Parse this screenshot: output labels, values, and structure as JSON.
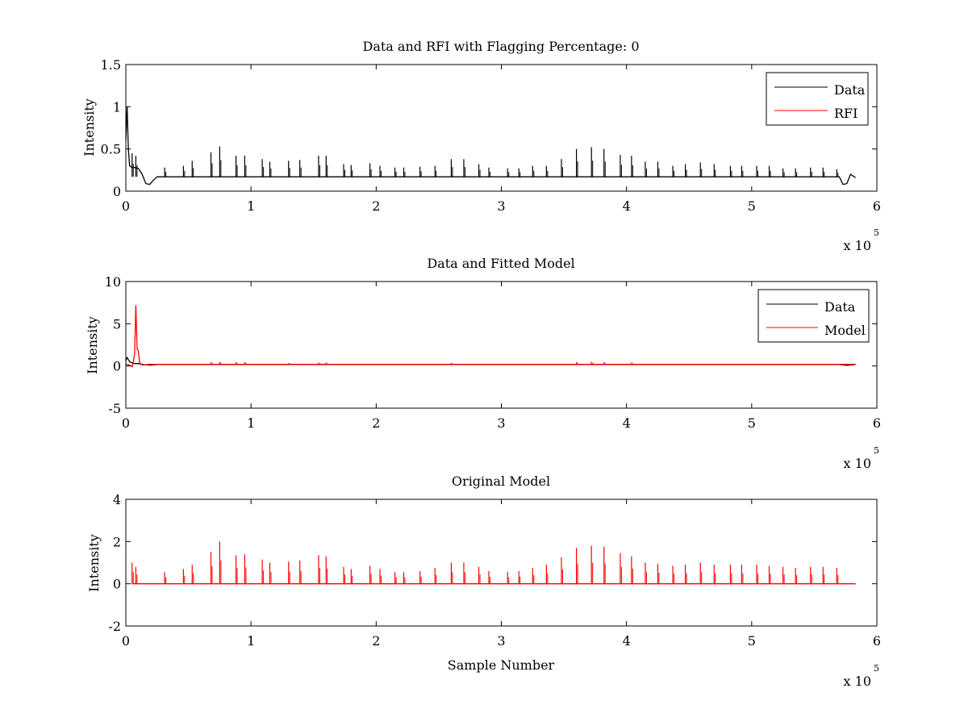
{
  "figure": {
    "background": "#ffffff"
  },
  "chart_data": [
    {
      "type": "line",
      "title": "Data and RFI with Flagging Percentage: 0",
      "xlabel": "",
      "ylabel": "Intensity",
      "xlim": [
        0,
        6
      ],
      "ylim": [
        0,
        1.5
      ],
      "x_ticks": [
        "0",
        "1",
        "2",
        "3",
        "4",
        "5",
        "6"
      ],
      "y_ticks": [
        "0",
        "0.5",
        "1",
        "1.5"
      ],
      "x_scale_label": {
        "prefix": "x 10",
        "exponent": "5"
      },
      "legend": {
        "position": "top-right",
        "entries": [
          {
            "name": "Data",
            "color": "#000000"
          },
          {
            "name": "RFI",
            "color": "#ff0000"
          }
        ]
      },
      "series": [
        {
          "name": "Data",
          "color": "#000000",
          "baseline": 0.17,
          "x": [
            0,
            0.01,
            0.02,
            0.03,
            0.05,
            0.07,
            0.1,
            0.13,
            0.16,
            0.19,
            0.22,
            0.25,
            5.7,
            5.73,
            5.76,
            5.79,
            5.83
          ],
          "y": [
            0.6,
            1.0,
            0.5,
            0.3,
            0.28,
            0.28,
            0.27,
            0.2,
            0.09,
            0.08,
            0.13,
            0.17,
            0.17,
            0.08,
            0.09,
            0.2,
            0.16
          ],
          "peaks": [
            {
              "x": 0.05,
              "y": 0.45
            },
            {
              "x": 0.08,
              "y": 0.42
            },
            {
              "x": 0.31,
              "y": 0.28
            },
            {
              "x": 0.46,
              "y": 0.3
            },
            {
              "x": 0.53,
              "y": 0.36
            },
            {
              "x": 0.68,
              "y": 0.46
            },
            {
              "x": 0.75,
              "y": 0.53
            },
            {
              "x": 0.88,
              "y": 0.42
            },
            {
              "x": 0.95,
              "y": 0.42
            },
            {
              "x": 1.09,
              "y": 0.38
            },
            {
              "x": 1.15,
              "y": 0.35
            },
            {
              "x": 1.3,
              "y": 0.36
            },
            {
              "x": 1.39,
              "y": 0.37
            },
            {
              "x": 1.54,
              "y": 0.42
            },
            {
              "x": 1.6,
              "y": 0.42
            },
            {
              "x": 1.74,
              "y": 0.32
            },
            {
              "x": 1.8,
              "y": 0.31
            },
            {
              "x": 1.95,
              "y": 0.33
            },
            {
              "x": 2.03,
              "y": 0.3
            },
            {
              "x": 2.15,
              "y": 0.28
            },
            {
              "x": 2.22,
              "y": 0.28
            },
            {
              "x": 2.35,
              "y": 0.29
            },
            {
              "x": 2.47,
              "y": 0.3
            },
            {
              "x": 2.6,
              "y": 0.38
            },
            {
              "x": 2.7,
              "y": 0.38
            },
            {
              "x": 2.82,
              "y": 0.32
            },
            {
              "x": 2.9,
              "y": 0.28
            },
            {
              "x": 3.05,
              "y": 0.27
            },
            {
              "x": 3.14,
              "y": 0.27
            },
            {
              "x": 3.25,
              "y": 0.3
            },
            {
              "x": 3.36,
              "y": 0.3
            },
            {
              "x": 3.48,
              "y": 0.38
            },
            {
              "x": 3.6,
              "y": 0.5
            },
            {
              "x": 3.72,
              "y": 0.52
            },
            {
              "x": 3.82,
              "y": 0.5
            },
            {
              "x": 3.95,
              "y": 0.43
            },
            {
              "x": 4.04,
              "y": 0.42
            },
            {
              "x": 4.15,
              "y": 0.35
            },
            {
              "x": 4.25,
              "y": 0.35
            },
            {
              "x": 4.37,
              "y": 0.3
            },
            {
              "x": 4.47,
              "y": 0.32
            },
            {
              "x": 4.59,
              "y": 0.34
            },
            {
              "x": 4.7,
              "y": 0.32
            },
            {
              "x": 4.83,
              "y": 0.3
            },
            {
              "x": 4.92,
              "y": 0.3
            },
            {
              "x": 5.04,
              "y": 0.3
            },
            {
              "x": 5.14,
              "y": 0.3
            },
            {
              "x": 5.25,
              "y": 0.27
            },
            {
              "x": 5.35,
              "y": 0.27
            },
            {
              "x": 5.47,
              "y": 0.28
            },
            {
              "x": 5.57,
              "y": 0.28
            },
            {
              "x": 5.68,
              "y": 0.26
            }
          ]
        },
        {
          "name": "RFI",
          "color": "#ff0000",
          "x": [],
          "y": []
        }
      ]
    },
    {
      "type": "line",
      "title": "Data and Fitted Model",
      "xlabel": "",
      "ylabel": "Intensity",
      "xlim": [
        0,
        6
      ],
      "ylim": [
        -5,
        10
      ],
      "x_ticks": [
        "0",
        "1",
        "2",
        "3",
        "4",
        "5",
        "6"
      ],
      "y_ticks": [
        "-5",
        "0",
        "5",
        "10"
      ],
      "x_scale_label": {
        "prefix": "x 10",
        "exponent": "5"
      },
      "legend": {
        "position": "top-right",
        "entries": [
          {
            "name": "Data",
            "color": "#000000"
          },
          {
            "name": "Model",
            "color": "#ff0000"
          }
        ]
      },
      "series": [
        {
          "name": "Data",
          "color": "#000000",
          "baseline": 0.17,
          "x": [
            0,
            0.01,
            0.03,
            0.06,
            0.1,
            0.15,
            0.2,
            0.25,
            5.7,
            5.76,
            5.83
          ],
          "y": [
            0.6,
            1.0,
            0.5,
            0.3,
            0.27,
            0.15,
            0.1,
            0.17,
            0.17,
            0.08,
            0.17
          ],
          "peaks": []
        },
        {
          "name": "Model",
          "color": "#ff0000",
          "baseline": 0.2,
          "x": [
            0,
            0.03,
            0.05,
            0.06,
            0.07,
            0.08,
            0.09,
            0.1,
            0.11,
            0.12,
            0.14,
            0.18,
            0.25,
            5.83
          ],
          "y": [
            0.2,
            0.1,
            -0.1,
            0.5,
            1.5,
            7.2,
            2.0,
            1.8,
            0.4,
            0.2,
            0.1,
            0.2,
            0.2,
            0.2
          ],
          "peaks": [
            {
              "x": 0.68,
              "y": 0.45
            },
            {
              "x": 0.75,
              "y": 0.5
            },
            {
              "x": 0.88,
              "y": 0.45
            },
            {
              "x": 0.95,
              "y": 0.45
            },
            {
              "x": 1.3,
              "y": 0.35
            },
            {
              "x": 1.54,
              "y": 0.4
            },
            {
              "x": 1.6,
              "y": 0.4
            },
            {
              "x": 2.6,
              "y": 0.35
            },
            {
              "x": 3.6,
              "y": 0.45
            },
            {
              "x": 3.72,
              "y": 0.5
            },
            {
              "x": 3.82,
              "y": 0.45
            },
            {
              "x": 4.04,
              "y": 0.4
            }
          ]
        }
      ]
    },
    {
      "type": "line",
      "title": "Original Model",
      "xlabel": "Sample Number",
      "ylabel": "Intensity",
      "xlim": [
        0,
        6
      ],
      "ylim": [
        -2,
        4
      ],
      "x_ticks": [
        "0",
        "1",
        "2",
        "3",
        "4",
        "5",
        "6"
      ],
      "y_ticks": [
        "-2",
        "0",
        "2",
        "4"
      ],
      "x_scale_label": {
        "prefix": "x 10",
        "exponent": "5"
      },
      "series": [
        {
          "name": "",
          "color": "#ff0000",
          "baseline": 0,
          "x": [
            0.05,
            5.83
          ],
          "y": [
            0,
            0
          ],
          "peaks": [
            {
              "x": 0.05,
              "y": 1.0
            },
            {
              "x": 0.08,
              "y": 0.8
            },
            {
              "x": 0.31,
              "y": 0.55
            },
            {
              "x": 0.46,
              "y": 0.7
            },
            {
              "x": 0.53,
              "y": 0.9
            },
            {
              "x": 0.68,
              "y": 1.5
            },
            {
              "x": 0.75,
              "y": 2.0
            },
            {
              "x": 0.88,
              "y": 1.35
            },
            {
              "x": 0.95,
              "y": 1.4
            },
            {
              "x": 1.09,
              "y": 1.15
            },
            {
              "x": 1.15,
              "y": 1.0
            },
            {
              "x": 1.3,
              "y": 1.05
            },
            {
              "x": 1.39,
              "y": 1.1
            },
            {
              "x": 1.54,
              "y": 1.35
            },
            {
              "x": 1.6,
              "y": 1.3
            },
            {
              "x": 1.74,
              "y": 0.8
            },
            {
              "x": 1.8,
              "y": 0.7
            },
            {
              "x": 1.95,
              "y": 0.85
            },
            {
              "x": 2.03,
              "y": 0.7
            },
            {
              "x": 2.15,
              "y": 0.55
            },
            {
              "x": 2.22,
              "y": 0.55
            },
            {
              "x": 2.35,
              "y": 0.6
            },
            {
              "x": 2.47,
              "y": 0.75
            },
            {
              "x": 2.6,
              "y": 1.0
            },
            {
              "x": 2.7,
              "y": 1.0
            },
            {
              "x": 2.82,
              "y": 0.8
            },
            {
              "x": 2.9,
              "y": 0.6
            },
            {
              "x": 3.05,
              "y": 0.55
            },
            {
              "x": 3.14,
              "y": 0.6
            },
            {
              "x": 3.25,
              "y": 0.75
            },
            {
              "x": 3.36,
              "y": 0.9
            },
            {
              "x": 3.48,
              "y": 1.25
            },
            {
              "x": 3.6,
              "y": 1.7
            },
            {
              "x": 3.72,
              "y": 1.8
            },
            {
              "x": 3.82,
              "y": 1.75
            },
            {
              "x": 3.95,
              "y": 1.45
            },
            {
              "x": 4.04,
              "y": 1.3
            },
            {
              "x": 4.15,
              "y": 1.0
            },
            {
              "x": 4.25,
              "y": 0.95
            },
            {
              "x": 4.37,
              "y": 0.85
            },
            {
              "x": 4.47,
              "y": 0.9
            },
            {
              "x": 4.59,
              "y": 1.0
            },
            {
              "x": 4.7,
              "y": 0.9
            },
            {
              "x": 4.83,
              "y": 0.9
            },
            {
              "x": 4.92,
              "y": 0.9
            },
            {
              "x": 5.04,
              "y": 0.9
            },
            {
              "x": 5.14,
              "y": 0.85
            },
            {
              "x": 5.25,
              "y": 0.8
            },
            {
              "x": 5.35,
              "y": 0.75
            },
            {
              "x": 5.47,
              "y": 0.8
            },
            {
              "x": 5.57,
              "y": 0.8
            },
            {
              "x": 5.68,
              "y": 0.75
            }
          ]
        }
      ]
    }
  ]
}
